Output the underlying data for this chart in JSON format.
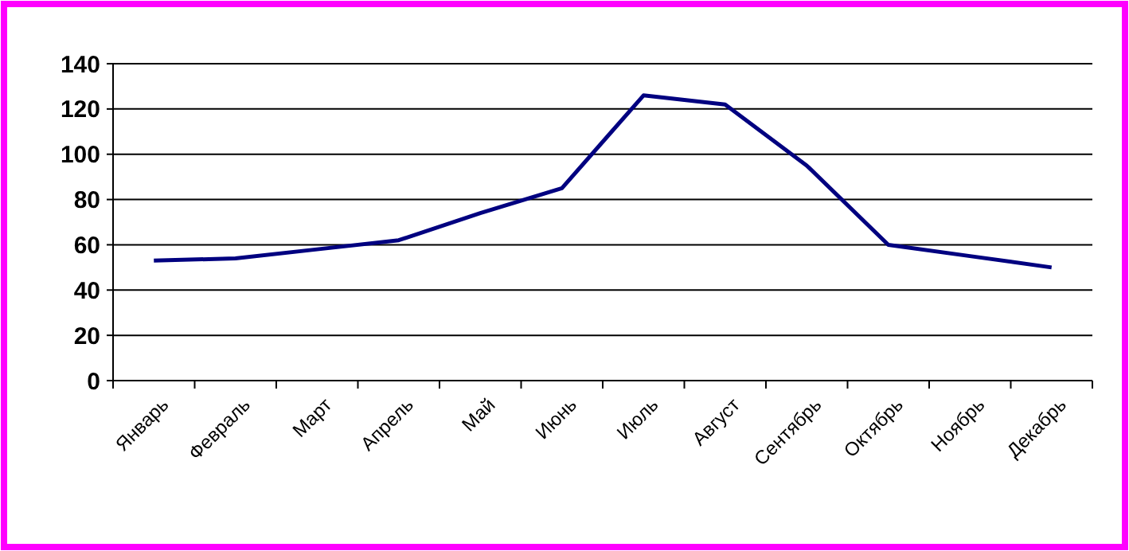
{
  "chart_data": {
    "type": "line",
    "categories": [
      "Январь",
      "Февраль",
      "Март",
      "Апрель",
      "Май",
      "Июнь",
      "Июль",
      "Август",
      "Сентябрь",
      "Октябрь",
      "Ноябрь",
      "Декабрь"
    ],
    "series": [
      {
        "color": "#000080",
        "values": [
          53,
          54,
          58,
          62,
          74,
          85,
          126,
          122,
          95,
          60,
          55,
          50
        ]
      }
    ],
    "ylim": [
      0,
      140
    ],
    "yticks": [
      0,
      20,
      40,
      60,
      80,
      100,
      120,
      140
    ],
    "grid": "y",
    "marker": "none",
    "line_style": "solid"
  }
}
